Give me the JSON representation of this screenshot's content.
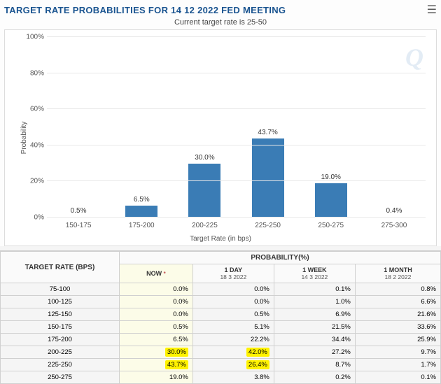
{
  "title": "TARGET RATE PROBABILITIES FOR 14 12 2022 FED MEETING",
  "subtitle": "Current target rate is 25-50",
  "watermark": "Q",
  "chart": {
    "type": "bar",
    "y_label": "Probability",
    "x_label": "Target Rate (in bps)",
    "ylim": [
      0,
      100
    ],
    "ytick_step": 20,
    "yticks": [
      "0%",
      "20%",
      "40%",
      "60%",
      "80%",
      "100%"
    ],
    "categories": [
      "150-175",
      "175-200",
      "200-225",
      "225-250",
      "250-275",
      "275-300"
    ],
    "values": [
      0.5,
      6.5,
      30.0,
      43.7,
      19.0,
      0.4
    ],
    "value_labels": [
      "0.5%",
      "6.5%",
      "30.0%",
      "43.7%",
      "19.0%",
      "0.4%"
    ],
    "bar_color": "#3a7cb5",
    "grid_color": "#e8e8e8",
    "baseline_color": "#aaaaaa",
    "background_color": "#ffffff"
  },
  "table": {
    "target_header": "TARGET RATE (BPS)",
    "prob_header": "PROBABILITY(%)",
    "columns": [
      {
        "label": "NOW",
        "date": ""
      },
      {
        "label": "1 DAY",
        "date": "18 3 2022"
      },
      {
        "label": "1 WEEK",
        "date": "14 3 2022"
      },
      {
        "label": "1 MONTH",
        "date": "18 2 2022"
      }
    ],
    "highlight_bg": "#fff200",
    "now_col_bg": "#fcfce8",
    "rows": [
      {
        "rate": "75-100",
        "vals": [
          "0.0%",
          "0.0%",
          "0.1%",
          "0.8%"
        ],
        "hl": [
          false,
          false,
          false,
          false
        ]
      },
      {
        "rate": "100-125",
        "vals": [
          "0.0%",
          "0.0%",
          "1.0%",
          "6.6%"
        ],
        "hl": [
          false,
          false,
          false,
          false
        ]
      },
      {
        "rate": "125-150",
        "vals": [
          "0.0%",
          "0.5%",
          "6.9%",
          "21.6%"
        ],
        "hl": [
          false,
          false,
          false,
          false
        ]
      },
      {
        "rate": "150-175",
        "vals": [
          "0.5%",
          "5.1%",
          "21.5%",
          "33.6%"
        ],
        "hl": [
          false,
          false,
          false,
          false
        ]
      },
      {
        "rate": "175-200",
        "vals": [
          "6.5%",
          "22.2%",
          "34.4%",
          "25.9%"
        ],
        "hl": [
          false,
          false,
          false,
          false
        ]
      },
      {
        "rate": "200-225",
        "vals": [
          "30.0%",
          "42.0%",
          "27.2%",
          "9.7%"
        ],
        "hl": [
          true,
          true,
          false,
          false
        ]
      },
      {
        "rate": "225-250",
        "vals": [
          "43.7%",
          "26.4%",
          "8.7%",
          "1.7%"
        ],
        "hl": [
          true,
          true,
          false,
          false
        ]
      },
      {
        "rate": "250-275",
        "vals": [
          "19.0%",
          "3.8%",
          "0.2%",
          "0.1%"
        ],
        "hl": [
          false,
          false,
          false,
          false
        ]
      }
    ]
  }
}
